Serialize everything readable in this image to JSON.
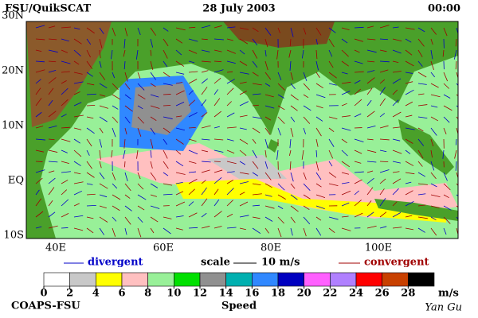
{
  "header": {
    "left": "FSU/QuikSCAT",
    "center": "28 July 2003",
    "right": "00:00"
  },
  "map": {
    "lat_labels": [
      "30N",
      "20N",
      "10N",
      "EQ",
      "10S"
    ],
    "lon_labels": [
      "40E",
      "60E",
      "80E",
      "100E"
    ]
  },
  "legend": {
    "divergent": "divergent",
    "scale": "scale",
    "scale_value": "10 m/s",
    "convergent": "convergent",
    "divergent_color": "#0000c8",
    "convergent_color": "#a00000"
  },
  "colorbar": {
    "ticks": [
      0,
      2,
      4,
      6,
      8,
      10,
      12,
      14,
      16,
      18,
      20,
      22,
      24,
      26,
      28
    ],
    "unit": "m/s",
    "label": "Speed",
    "colors": [
      "#ffffff",
      "#c8c8c8",
      "#ffff00",
      "#ffc0c0",
      "#98f098",
      "#00e000",
      "#909090",
      "#00b0b0",
      "#3088ff",
      "#0000c0",
      "#ff60ff",
      "#b080ff",
      "#ff0000",
      "#c84000",
      "#000000"
    ]
  },
  "footer": {
    "left": "COAPS-FSU",
    "right": "Yan Gu"
  }
}
